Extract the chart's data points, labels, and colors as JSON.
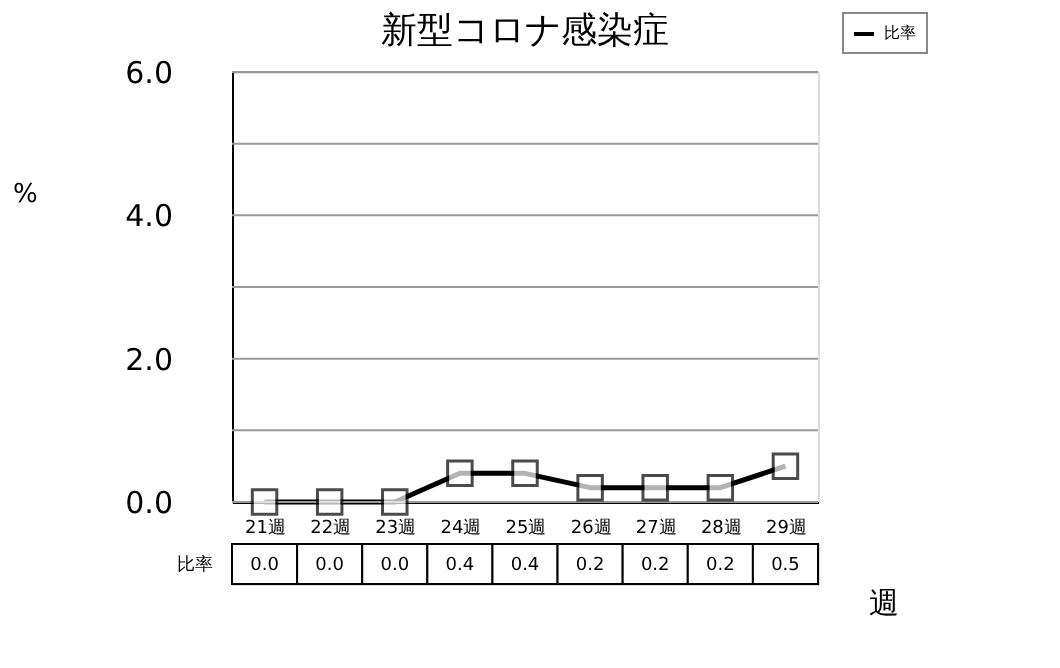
{
  "chart_data": {
    "type": "line",
    "title": "新型コロナ感染症",
    "xlabel": "週",
    "ylabel": "%",
    "categories": [
      "21週",
      "22週",
      "23週",
      "24週",
      "25週",
      "26週",
      "27週",
      "28週",
      "29週"
    ],
    "series": [
      {
        "name": "比率",
        "color": "#000000",
        "values": [
          0.0,
          0.0,
          0.0,
          0.4,
          0.4,
          0.2,
          0.2,
          0.2,
          0.5
        ],
        "value_labels": [
          "0.0",
          "0.0",
          "0.0",
          "0.4",
          "0.4",
          "0.2",
          "0.2",
          "0.2",
          "0.5"
        ]
      }
    ],
    "ylim": [
      0,
      6
    ],
    "yticks": [
      {
        "value": 0,
        "label": "0.0"
      },
      {
        "value": 1,
        "label": null
      },
      {
        "value": 2,
        "label": "2.0"
      },
      {
        "value": 3,
        "label": null
      },
      {
        "value": 4,
        "label": "4.0"
      },
      {
        "value": 5,
        "label": null
      },
      {
        "value": 6,
        "label": "6.0"
      }
    ],
    "grid": "y",
    "legend": "top right",
    "marker": "square",
    "line_style": "solid"
  }
}
